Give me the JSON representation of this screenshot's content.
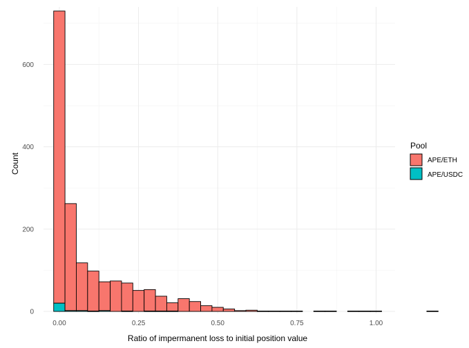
{
  "chart_data": {
    "type": "bar",
    "subtype": "stacked-histogram",
    "xlabel": "Ratio of impermanent loss to initial position value",
    "ylabel": "Count",
    "xlim": [
      -0.05,
      1.06
    ],
    "ylim": [
      -5,
      740
    ],
    "x_ticks": [
      0.0,
      0.25,
      0.5,
      0.75,
      1.0
    ],
    "x_tick_labels": [
      "0.00",
      "0.25",
      "0.50",
      "0.75",
      "1.00"
    ],
    "y_ticks": [
      0,
      200,
      400,
      600
    ],
    "y_tick_labels": [
      "0",
      "200",
      "400",
      "600"
    ],
    "grid": true,
    "legend": {
      "title": "Pool",
      "position": "right"
    },
    "bin_width": 0.0357,
    "bin_start": -0.0179,
    "series": [
      {
        "name": "APE/ETH",
        "color": "#F8766D",
        "values": [
          710,
          260,
          116,
          97,
          70,
          74,
          68,
          51,
          52,
          36,
          20,
          31,
          24,
          14,
          10,
          6,
          2,
          3,
          1,
          1,
          1,
          1,
          0,
          1,
          1,
          0,
          1,
          1,
          1,
          0,
          0,
          0,
          0,
          1
        ]
      },
      {
        "name": "APE/USDC",
        "color": "#00BFC4",
        "values": [
          20,
          2,
          2,
          1,
          2,
          0,
          1,
          0,
          1,
          1,
          1,
          0,
          0,
          0,
          0,
          0,
          0,
          0,
          0,
          0,
          0,
          0,
          0,
          0,
          0,
          0,
          0,
          0,
          0,
          0,
          0,
          0,
          0,
          0
        ]
      }
    ]
  }
}
